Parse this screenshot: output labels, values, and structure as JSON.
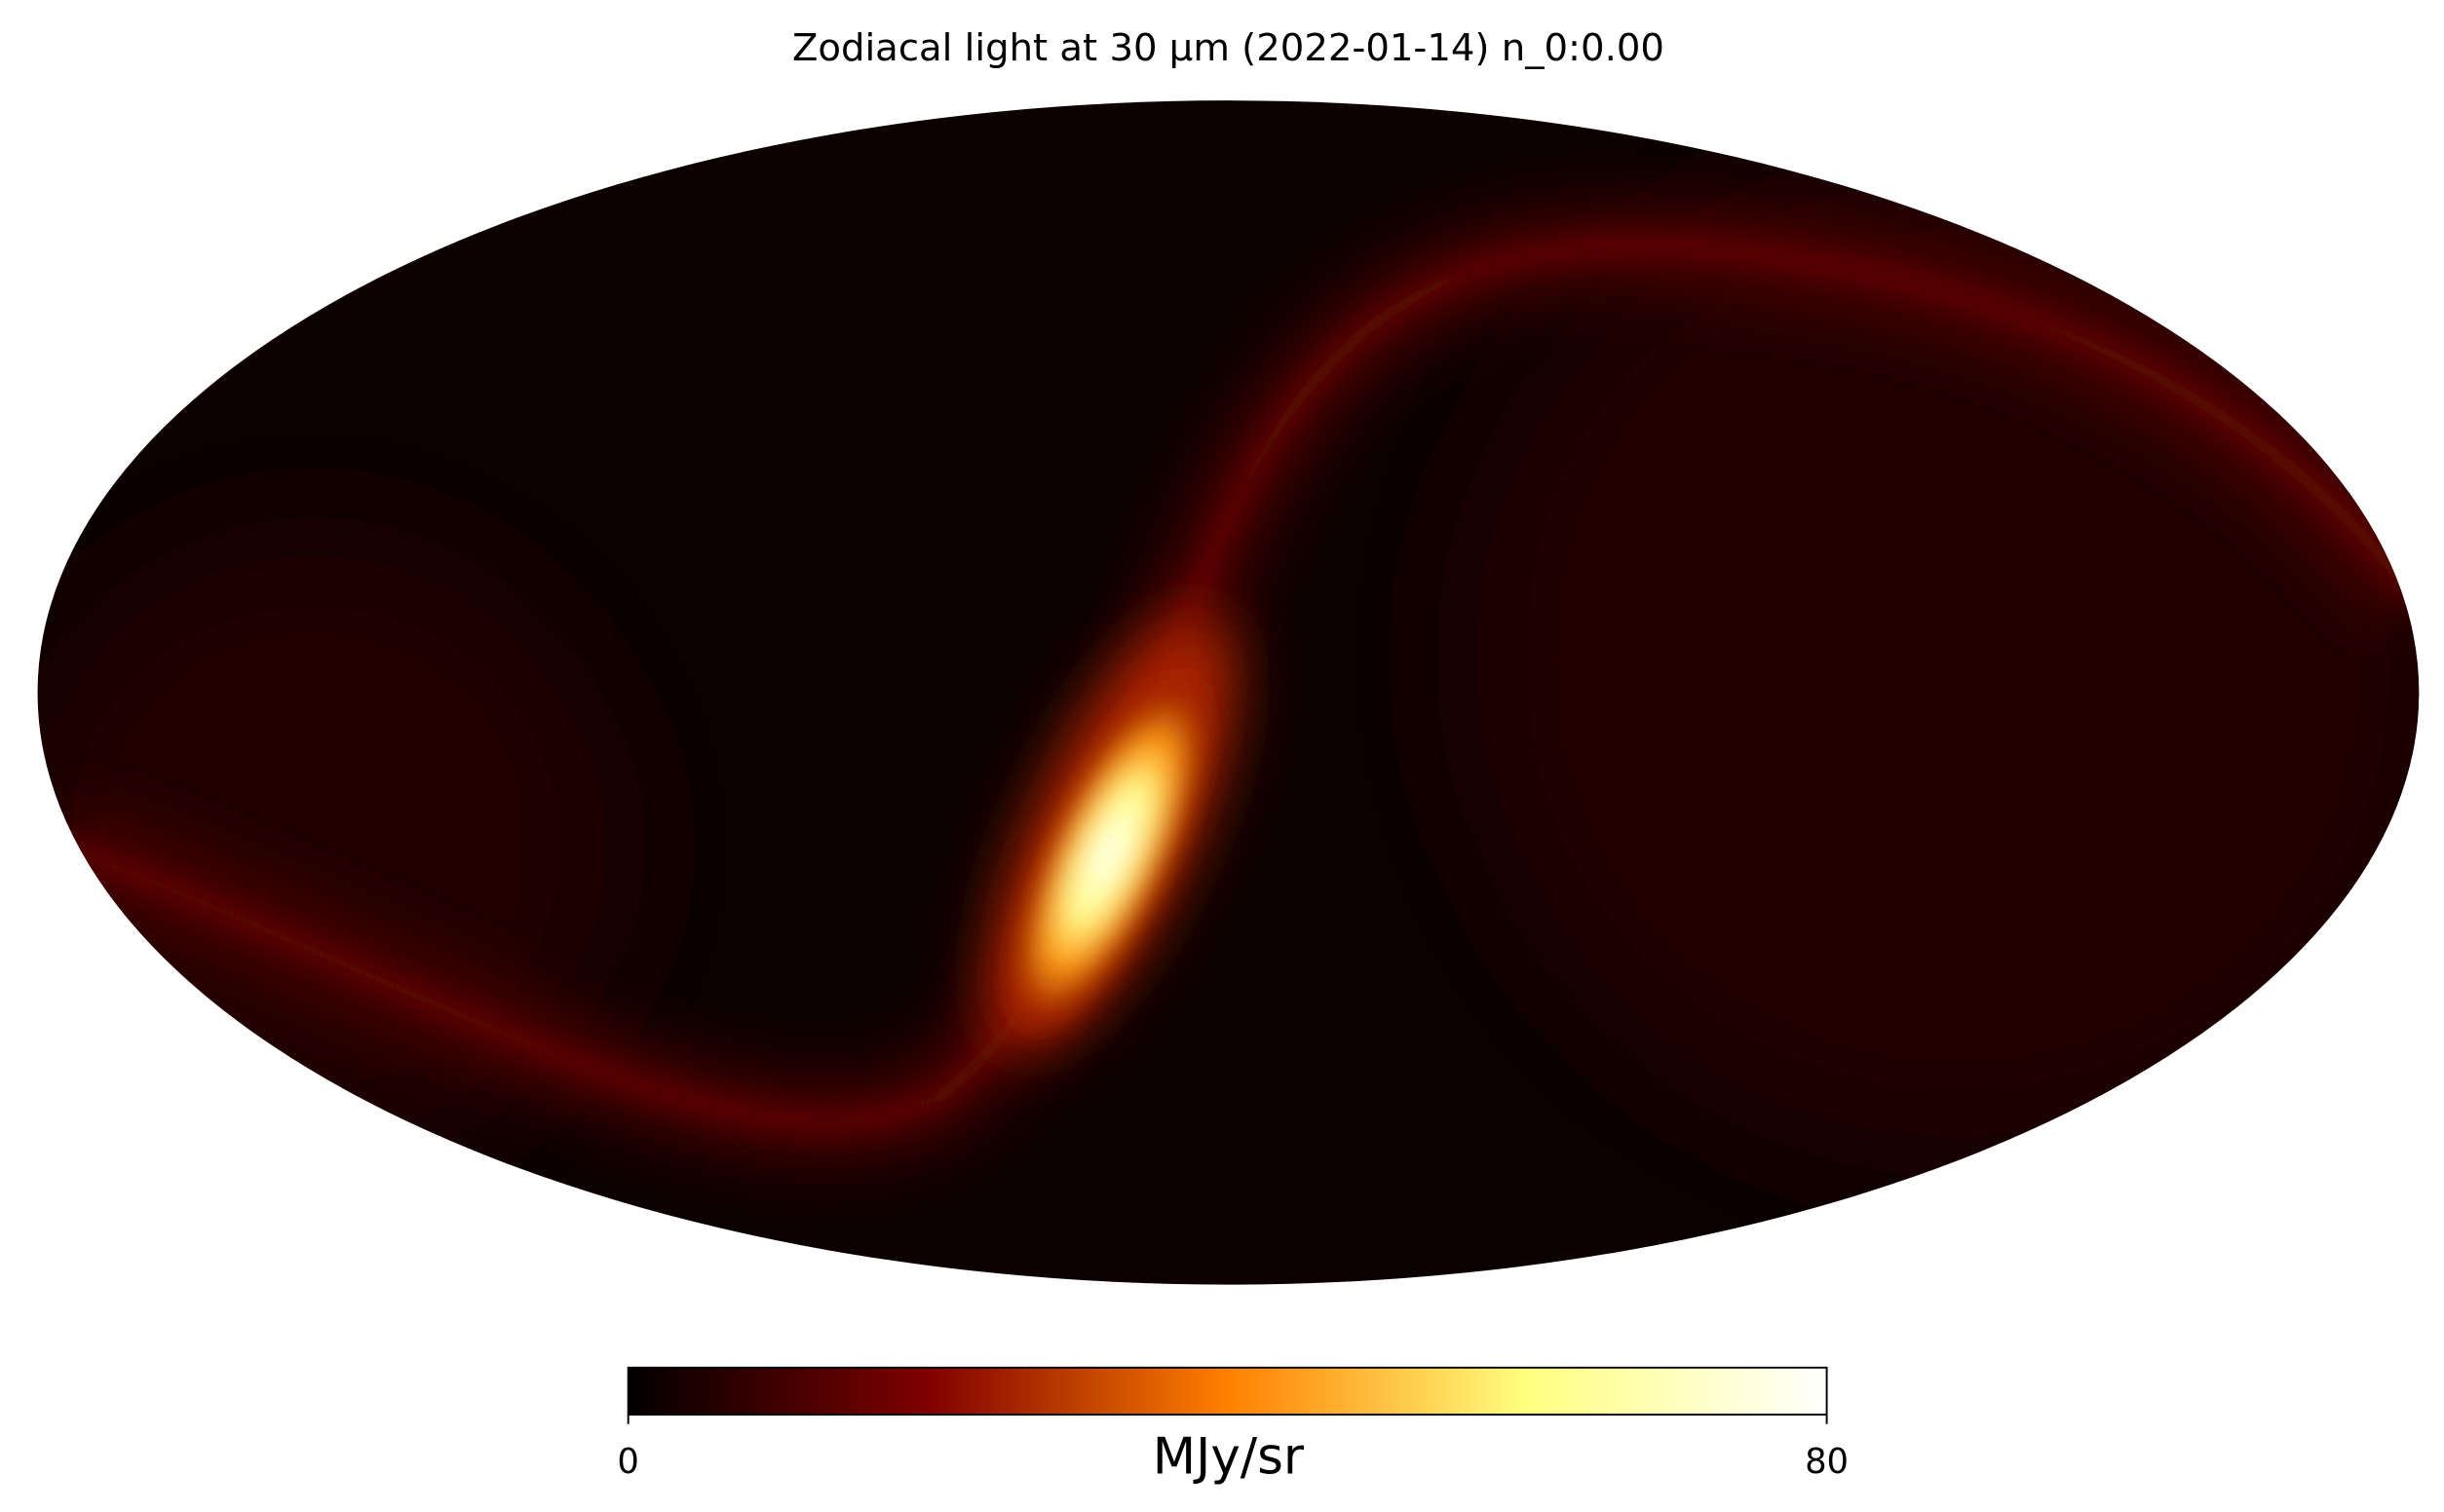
{
  "chart_data": {
    "type": "mollweide",
    "title": "Zodiacal light at 30 µm (2022-01-14) n_0:0.00",
    "colorbar": {
      "label": "MJy/sr",
      "range": [
        0,
        80
      ],
      "ticks": [
        0,
        80
      ],
      "cmap": "afmhot"
    }
  }
}
